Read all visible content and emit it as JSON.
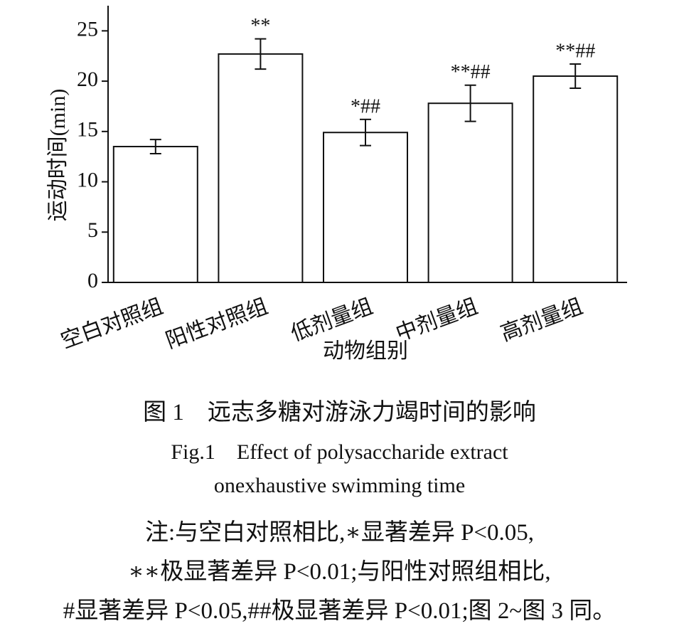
{
  "chart_data": {
    "type": "bar",
    "xlabel": "动物组别",
    "ylabel": "运动时间(min)",
    "categories": [
      "空白对照组",
      "阳性对照组",
      "低剂量组",
      "中剂量组",
      "高剂量组"
    ],
    "values": [
      13.5,
      22.7,
      14.9,
      17.8,
      20.5
    ],
    "errors": [
      0.7,
      1.5,
      1.3,
      1.8,
      1.2
    ],
    "annotations": [
      null,
      "**",
      "*##",
      "**##",
      "**##"
    ],
    "color": "#ffffff",
    "ylim": [
      0,
      27.5
    ],
    "yticks": [
      0,
      5,
      10,
      15,
      20,
      25
    ],
    "grid": false
  },
  "caption": {
    "title_cn": "图 1　远志多糖对游泳力竭时间的影响",
    "title_en": [
      "Fig.1　Effect of polysaccharide extract",
      "onexhaustive swimming time"
    ],
    "notes": [
      "注:与空白对照相比,∗显著差异 P<0.05,",
      "∗∗极显著差异 P<0.01;与阳性对照组相比,",
      "#显著差异 P<0.05,##极显著差异 P<0.01;图 2~图 3 同。"
    ]
  }
}
